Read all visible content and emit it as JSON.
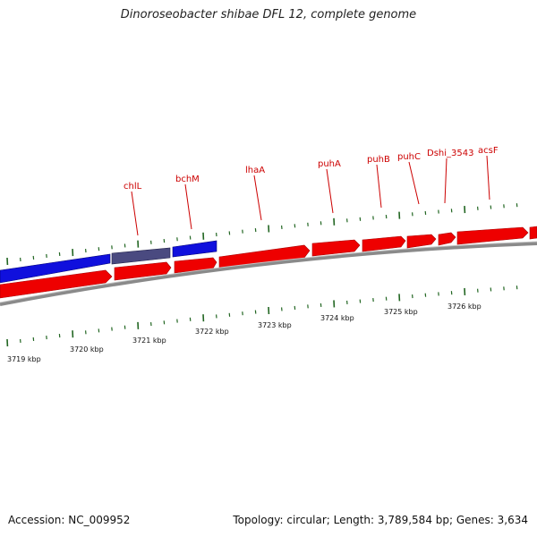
{
  "title": "Dinoroseobacter shibae DFL 12, complete genome",
  "footer": {
    "accession": "Accession: NC_009952",
    "summary": "Topology: circular; Length: 3,789,584 bp; Genes: 3,634"
  },
  "colors": {
    "forward": "#ee0000",
    "reverse": "#1010dd",
    "reverse_alt": "#4a4a80",
    "label": "#cc0000",
    "tick": "#226622",
    "backbone": "#888888"
  },
  "tick_labels": [
    {
      "text": "3719 kbp",
      "kbp": 3719
    },
    {
      "text": "3720 kbp",
      "kbp": 3720
    },
    {
      "text": "3721 kbp",
      "kbp": 3721
    },
    {
      "text": "3722 kbp",
      "kbp": 3722
    },
    {
      "text": "3723 kbp",
      "kbp": 3723
    },
    {
      "text": "3724 kbp",
      "kbp": 3724
    },
    {
      "text": "3725 kbp",
      "kbp": 3725
    },
    {
      "text": "3726 kbp",
      "kbp": 3726
    }
  ],
  "gene_labels": [
    "chlL",
    "bchM",
    "lhaA",
    "puhA",
    "puhB",
    "puhC",
    "Dshi_3543",
    "acsF"
  ]
}
